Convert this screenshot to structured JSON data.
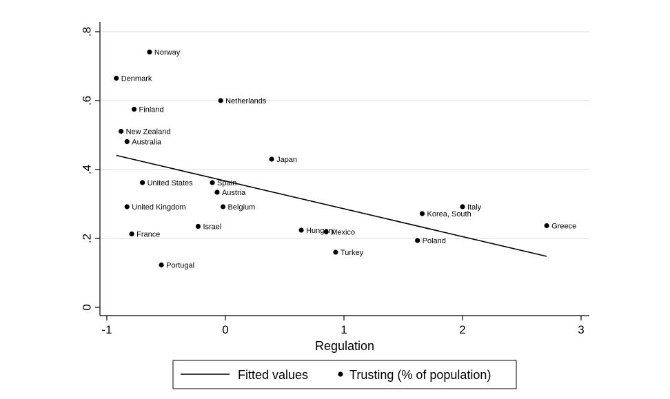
{
  "chart_data": {
    "type": "scatter",
    "title": "",
    "xlabel": "Regulation",
    "ylabel": "",
    "xlim": [
      -1.05,
      3.05
    ],
    "ylim": [
      -0.02,
      0.82
    ],
    "xticks": [
      -1,
      0,
      1,
      2,
      3
    ],
    "xtick_labels": [
      "-1",
      "0",
      "1",
      "2",
      "3"
    ],
    "yticks": [
      0,
      0.2,
      0.4,
      0.6,
      0.8
    ],
    "ytick_labels": [
      "0",
      ".2",
      ".4",
      ".6",
      ".8"
    ],
    "grid": "horizontal",
    "legend": {
      "placement": "bottom",
      "entries": [
        "Fitted values",
        "Trusting (% of population)"
      ]
    },
    "series": [
      {
        "name": "Trusting (% of population)",
        "kind": "scatter",
        "color": "#000000",
        "points": [
          {
            "label": "Norway",
            "x": -0.64,
            "y": 0.741
          },
          {
            "label": "Denmark",
            "x": -0.92,
            "y": 0.665
          },
          {
            "label": "Netherlands",
            "x": -0.04,
            "y": 0.6
          },
          {
            "label": "Finland",
            "x": -0.77,
            "y": 0.575
          },
          {
            "label": "New Zealand",
            "x": -0.88,
            "y": 0.511
          },
          {
            "label": "Australia",
            "x": -0.83,
            "y": 0.481
          },
          {
            "label": "Japan",
            "x": 0.39,
            "y": 0.43
          },
          {
            "label": "United States",
            "x": -0.7,
            "y": 0.362
          },
          {
            "label": "Spain",
            "x": -0.11,
            "y": 0.362
          },
          {
            "label": "Austria",
            "x": -0.07,
            "y": 0.334
          },
          {
            "label": "United Kingdom",
            "x": -0.83,
            "y": 0.292
          },
          {
            "label": "Belgium",
            "x": -0.02,
            "y": 0.292
          },
          {
            "label": "Italy",
            "x": 2.0,
            "y": 0.292
          },
          {
            "label": "Korea, South",
            "x": 1.66,
            "y": 0.272
          },
          {
            "label": "Greece",
            "x": 2.71,
            "y": 0.237
          },
          {
            "label": "Israel",
            "x": -0.23,
            "y": 0.235
          },
          {
            "label": "Hungary",
            "x": 0.64,
            "y": 0.224
          },
          {
            "label": "Mexico",
            "x": 0.85,
            "y": 0.219
          },
          {
            "label": "France",
            "x": -0.79,
            "y": 0.213
          },
          {
            "label": "Poland",
            "x": 1.62,
            "y": 0.194
          },
          {
            "label": "Turkey",
            "x": 0.93,
            "y": 0.16
          },
          {
            "label": "Portugal",
            "x": -0.54,
            "y": 0.123
          }
        ]
      },
      {
        "name": "Fitted values",
        "kind": "line",
        "color": "#000000",
        "x": [
          -0.92,
          2.71
        ],
        "y": [
          0.441,
          0.148
        ]
      }
    ]
  }
}
